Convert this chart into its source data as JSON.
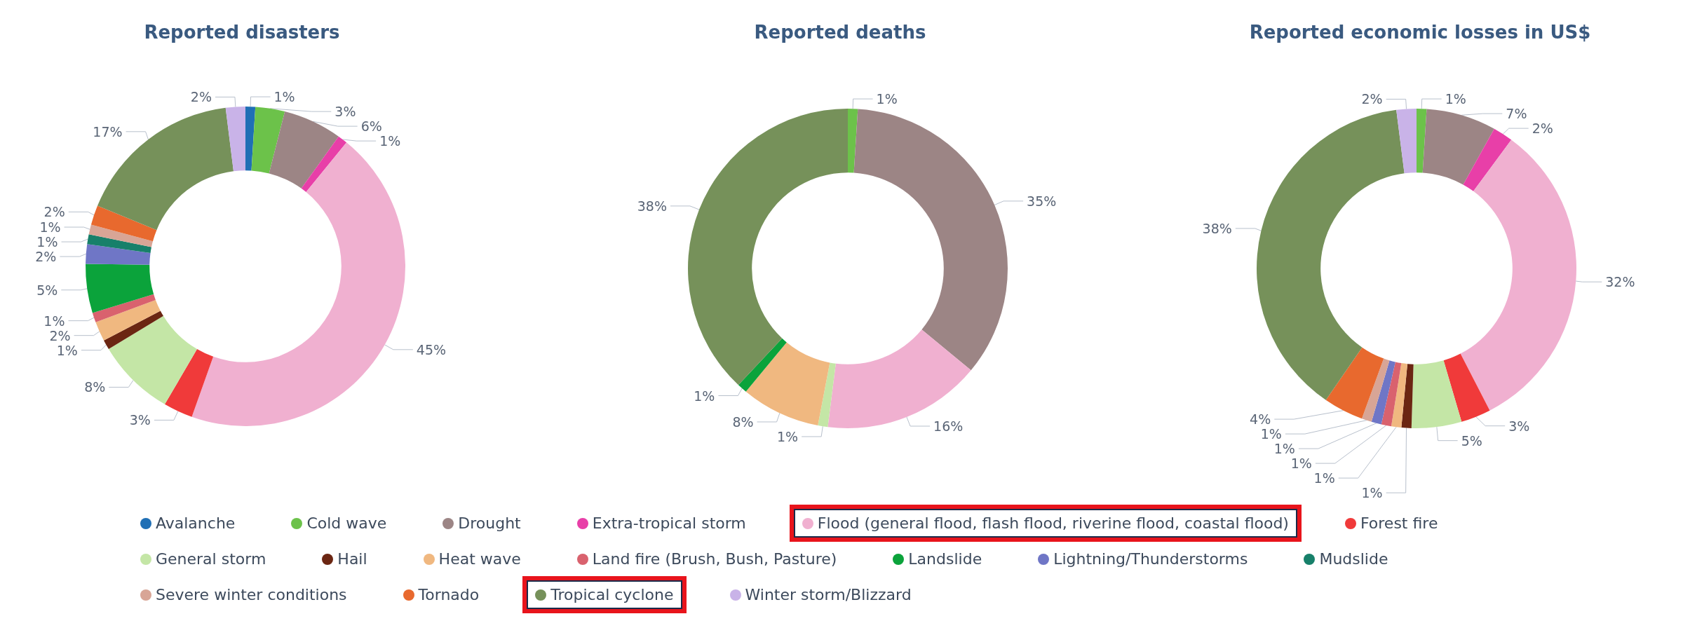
{
  "chart_data": {
    "type": "donut",
    "legend": "bottom",
    "categories": [
      "Avalanche",
      "Cold wave",
      "Drought",
      "Extra-tropical storm",
      "Flood (general flood, flash flood, riverine flood, coastal flood)",
      "Forest fire",
      "General storm",
      "Hail",
      "Heat wave",
      "Land fire (Brush, Bush, Pasture)",
      "Landslide",
      "Lightning/Thunderstorms",
      "Mudslide",
      "Severe winter conditions",
      "Tornado",
      "Tropical cyclone",
      "Winter storm/Blizzard"
    ],
    "colors": [
      "#1f6fb5",
      "#6cc24a",
      "#9c8585",
      "#e83fa8",
      "#f0b0d0",
      "#f03a3a",
      "#c4e6a6",
      "#6b2612",
      "#f0b880",
      "#d9626e",
      "#0ba33b",
      "#6f76c6",
      "#17806a",
      "#d8a596",
      "#e8692e",
      "#76915a",
      "#c9b3e8"
    ],
    "series": [
      {
        "name": "Reported disasters",
        "values": [
          1,
          3,
          6,
          1,
          45,
          3,
          8,
          1,
          2,
          1,
          5,
          2,
          1,
          1,
          2,
          17,
          2
        ],
        "value_labels": [
          "1%",
          "3%",
          "6%",
          "1%",
          "45%",
          "3%",
          "8%",
          "1%",
          "2%",
          "1%",
          "5%",
          "2%",
          "1%",
          "1%",
          "2%",
          "17%",
          "2%"
        ]
      },
      {
        "name": "Reported deaths",
        "values": [
          null,
          1,
          35,
          null,
          16,
          null,
          1,
          null,
          8,
          null,
          1,
          null,
          null,
          null,
          null,
          38,
          null
        ],
        "value_labels": [
          null,
          "1%",
          "35%",
          null,
          "16%",
          null,
          "1%",
          null,
          "8%",
          null,
          "1%",
          null,
          null,
          null,
          null,
          "38%",
          null
        ]
      },
      {
        "name": "Reported economic losses in US$",
        "values": [
          null,
          1,
          7,
          2,
          32,
          3,
          5,
          1,
          1,
          1,
          null,
          1,
          null,
          1,
          4,
          38,
          2
        ],
        "value_labels": [
          null,
          "1%",
          "7%",
          "2%",
          "32%",
          "3%",
          "5%",
          "1%",
          "1%",
          "1%",
          null,
          "1%",
          null,
          "1%",
          "4%",
          "38%",
          "2%"
        ]
      }
    ]
  }
}
